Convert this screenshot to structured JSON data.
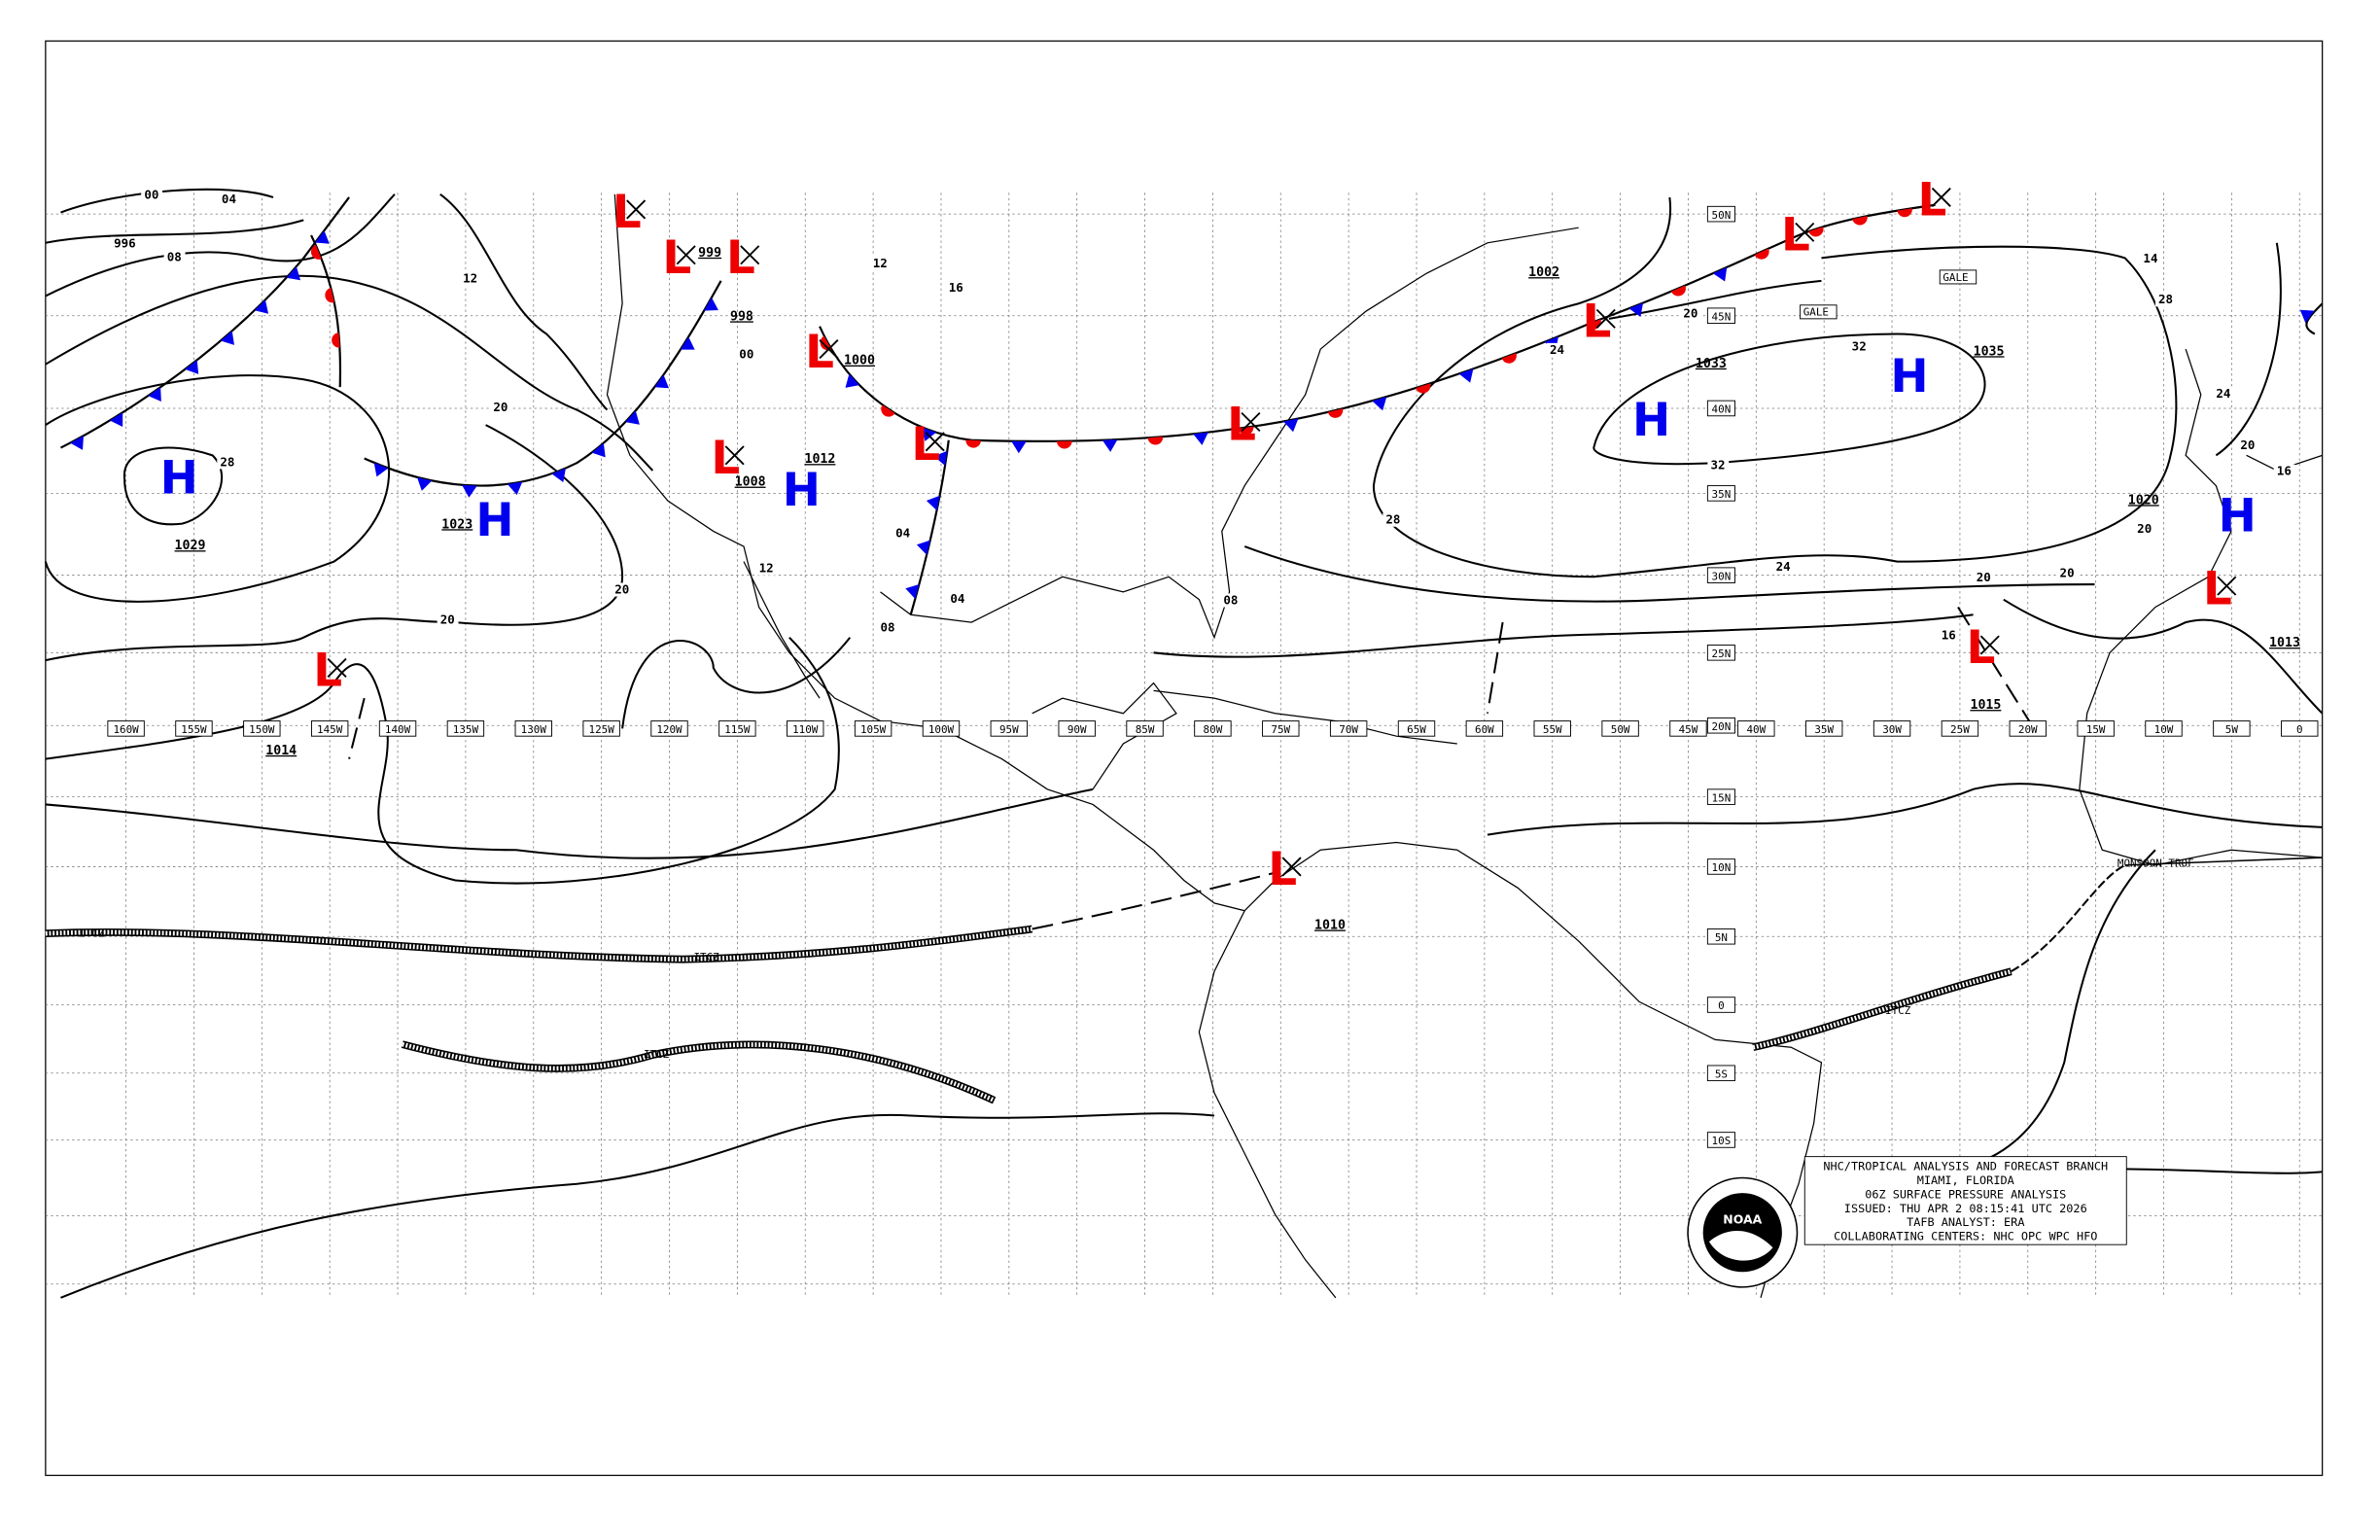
{
  "title_block": {
    "lines": [
      "NHC/TROPICAL ANALYSIS AND FORECAST BRANCH",
      "MIAMI, FLORIDA",
      "06Z SURFACE PRESSURE ANALYSIS",
      "ISSUED: THU APR 2 08:15:41 UTC 2026",
      "TAFB ANALYST: ERA",
      "COLLABORATING CENTERS: NHC OPC WPC HFO"
    ],
    "logo_text": "NOAA"
  },
  "longitude_labels": [
    "160W",
    "155W",
    "150W",
    "145W",
    "140W",
    "135W",
    "130W",
    "125W",
    "120W",
    "115W",
    "110W",
    "105W",
    "100W",
    "95W",
    "90W",
    "85W",
    "80W",
    "75W",
    "70W",
    "65W",
    "60W",
    "55W",
    "50W",
    "45W",
    "40W",
    "35W",
    "30W",
    "25W",
    "20W",
    "15W",
    "10W",
    "5W",
    "0"
  ],
  "latitude_labels": [
    "50N",
    "45N",
    "40N",
    "35N",
    "30N",
    "25N",
    "20N",
    "15N",
    "10N",
    "5N",
    "0",
    "5S",
    "10S"
  ],
  "pressure_centers": [
    {
      "type": "H",
      "value": "1029"
    },
    {
      "type": "H",
      "value": "1023"
    },
    {
      "type": "H",
      "value": "1012"
    },
    {
      "type": "H",
      "value": "1033"
    },
    {
      "type": "H",
      "value": "1035"
    },
    {
      "type": "H",
      "value": "1020"
    },
    {
      "type": "L",
      "value": "1014"
    },
    {
      "type": "L",
      "value": "1010"
    },
    {
      "type": "L",
      "value": "1008"
    },
    {
      "type": "L",
      "value": "1015"
    },
    {
      "type": "L",
      "value": "1013"
    },
    {
      "type": "L",
      "value": "1000"
    },
    {
      "type": "L",
      "value": "998"
    },
    {
      "type": "L",
      "value": "999"
    },
    {
      "type": "L",
      "value": "1002"
    },
    {
      "type": "L",
      "value": ""
    },
    {
      "type": "L",
      "value": ""
    },
    {
      "type": "L",
      "value": ""
    },
    {
      "type": "L",
      "value": ""
    },
    {
      "type": "L",
      "value": ""
    }
  ],
  "isobar_labels": [
    "00",
    "04",
    "996",
    "08",
    "12",
    "20",
    "28",
    "20",
    "20",
    "12",
    "04",
    "00",
    "12",
    "16",
    "08",
    "04",
    "08",
    "20",
    "24",
    "32",
    "32",
    "28",
    "24",
    "20",
    "20",
    "14",
    "28",
    "24",
    "20",
    "16",
    "20",
    "16"
  ],
  "feature_labels": {
    "itcz": "ITCZ",
    "gale": "GALE",
    "monsoon": "MONSOON TROF"
  },
  "colors": {
    "high": "#0000ee",
    "low": "#ee0000",
    "cold_front": "#0000ee",
    "warm_front": "#ee0000"
  }
}
